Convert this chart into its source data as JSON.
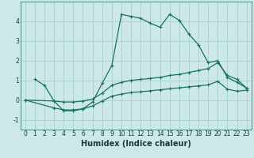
{
  "xlabel": "Humidex (Indice chaleur)",
  "ylabel": "",
  "bg_color": "#cce8e8",
  "grid_color": "#aacfcf",
  "line_color": "#1a7060",
  "series1_x": [
    1,
    2,
    3,
    4,
    5,
    6,
    7,
    8,
    9,
    10,
    11,
    12,
    13,
    14,
    15,
    16,
    17,
    18,
    19,
    20,
    21,
    22,
    23
  ],
  "series1_y": [
    1.05,
    0.75,
    -0.05,
    -0.55,
    -0.55,
    -0.45,
    -0.1,
    0.85,
    1.75,
    4.35,
    4.25,
    4.15,
    3.9,
    3.7,
    4.35,
    4.05,
    3.35,
    2.8,
    1.9,
    2.0,
    1.15,
    0.9,
    0.6
  ],
  "series2_x": [
    0,
    3,
    4,
    5,
    6,
    7,
    8,
    9,
    10,
    11,
    12,
    13,
    14,
    15,
    16,
    17,
    18,
    19,
    20,
    21,
    22,
    23
  ],
  "series2_y": [
    0.0,
    -0.05,
    -0.1,
    -0.1,
    -0.05,
    0.05,
    0.35,
    0.75,
    0.9,
    1.0,
    1.05,
    1.1,
    1.15,
    1.25,
    1.3,
    1.4,
    1.5,
    1.6,
    1.9,
    1.25,
    1.05,
    0.6
  ],
  "series3_x": [
    0,
    3,
    4,
    5,
    6,
    7,
    8,
    9,
    10,
    11,
    12,
    13,
    14,
    15,
    16,
    17,
    18,
    19,
    20,
    21,
    22,
    23
  ],
  "series3_y": [
    0.0,
    -0.4,
    -0.5,
    -0.5,
    -0.45,
    -0.3,
    -0.05,
    0.2,
    0.3,
    0.38,
    0.42,
    0.47,
    0.52,
    0.57,
    0.62,
    0.67,
    0.72,
    0.77,
    0.95,
    0.55,
    0.45,
    0.5
  ],
  "xlim": [
    -0.5,
    23.5
  ],
  "ylim": [
    -1.5,
    5.0
  ],
  "xticks": [
    0,
    1,
    2,
    3,
    4,
    5,
    6,
    7,
    8,
    9,
    10,
    11,
    12,
    13,
    14,
    15,
    16,
    17,
    18,
    19,
    20,
    21,
    22,
    23
  ],
  "yticks": [
    -1,
    0,
    1,
    2,
    3,
    4
  ],
  "tick_fontsize": 5.5,
  "label_fontsize": 7.0
}
